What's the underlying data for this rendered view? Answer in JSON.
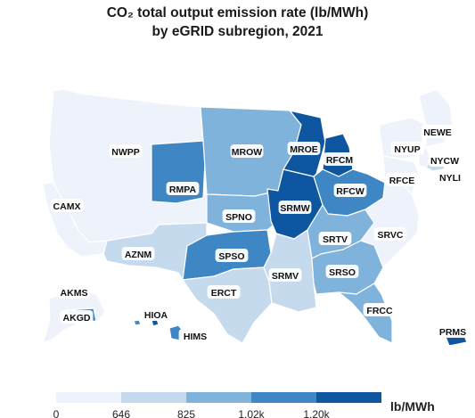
{
  "title_line1": "CO₂ total output emission rate (lb/MWh)",
  "title_line2": "by eGRID subregion, 2021",
  "colors": {
    "c0": "#eef2fb",
    "c1": "#c6daee",
    "c2": "#80b3dc",
    "c3": "#3f87c4",
    "c4": "#0f56a0"
  },
  "legend": {
    "ticks": [
      "0",
      "646",
      "825",
      "1.02k",
      "1.20k"
    ],
    "unit": "lb/MWh"
  },
  "regions": [
    {
      "id": "NWPP",
      "label": "NWPP",
      "bin": "c0"
    },
    {
      "id": "CAMX",
      "label": "CAMX",
      "bin": "c0"
    },
    {
      "id": "AZNM",
      "label": "AZNM",
      "bin": "c1"
    },
    {
      "id": "RMPA",
      "label": "RMPA",
      "bin": "c3"
    },
    {
      "id": "MROW",
      "label": "MROW",
      "bin": "c2"
    },
    {
      "id": "SPNO",
      "label": "SPNO",
      "bin": "c2"
    },
    {
      "id": "SPSO",
      "label": "SPSO",
      "bin": "c3"
    },
    {
      "id": "ERCT",
      "label": "ERCT",
      "bin": "c1"
    },
    {
      "id": "SRMW",
      "label": "SRMW",
      "bin": "c4"
    },
    {
      "id": "SRMV",
      "label": "SRMV",
      "bin": "c1"
    },
    {
      "id": "MROE",
      "label": "MROE",
      "bin": "c4"
    },
    {
      "id": "RFCM",
      "label": "RFCM",
      "bin": "c4"
    },
    {
      "id": "RFCW",
      "label": "RFCW",
      "bin": "c3"
    },
    {
      "id": "SRTV",
      "label": "SRTV",
      "bin": "c2"
    },
    {
      "id": "SRSO",
      "label": "SRSO",
      "bin": "c2"
    },
    {
      "id": "FRCC",
      "label": "FRCC",
      "bin": "c2"
    },
    {
      "id": "SRVC",
      "label": "SRVC",
      "bin": "c0"
    },
    {
      "id": "RFCE",
      "label": "RFCE",
      "bin": "c0"
    },
    {
      "id": "NYUP",
      "label": "NYUP",
      "bin": "c0"
    },
    {
      "id": "NEWE",
      "label": "NEWE",
      "bin": "c0"
    },
    {
      "id": "NYCW",
      "label": "NYCW",
      "bin": "c0"
    },
    {
      "id": "NYLI",
      "label": "NYLI",
      "bin": "c1"
    },
    {
      "id": "AKMS",
      "label": "AKMS",
      "bin": "c0"
    },
    {
      "id": "AKGD",
      "label": "AKGD",
      "bin": "c3"
    },
    {
      "id": "HIOA",
      "label": "HIOA",
      "bin": "c4"
    },
    {
      "id": "HIMS",
      "label": "HIMS",
      "bin": "c3"
    },
    {
      "id": "PRMS",
      "label": "PRMS",
      "bin": "c4"
    }
  ]
}
